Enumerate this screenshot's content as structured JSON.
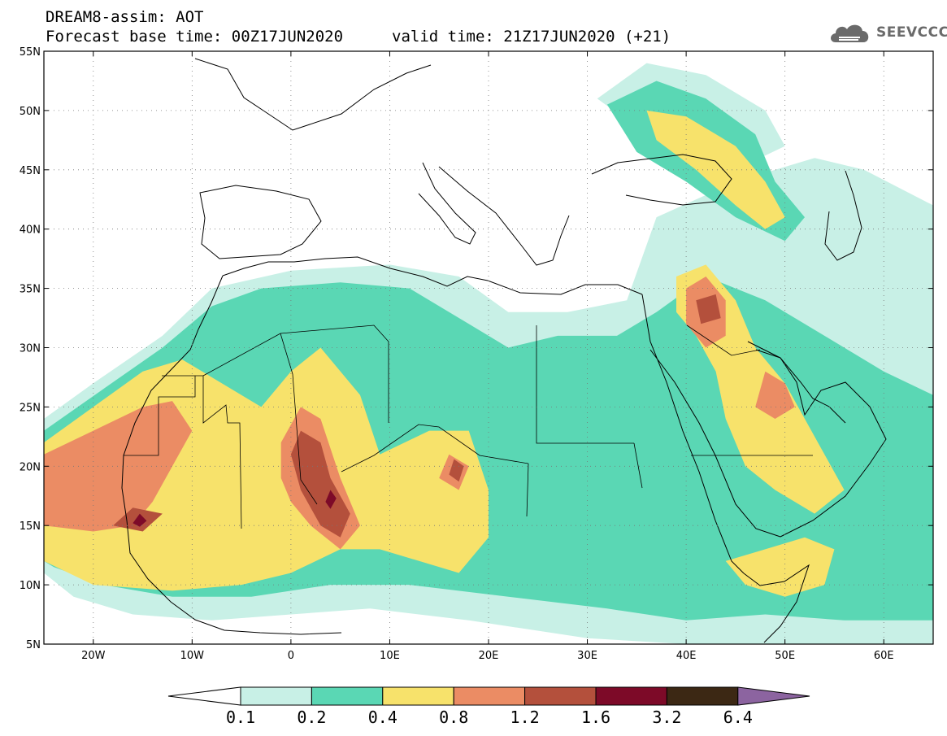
{
  "header": {
    "title_line1": "DREAM8-assim: AOT",
    "title_line2": "Forecast base time: 00Z17JUN2020",
    "valid_time": "valid time: 21Z17JUN2020 (+21)",
    "logo_text": "SEEVCCC"
  },
  "map": {
    "lon_range": [
      -25,
      65
    ],
    "lat_range": [
      5,
      55
    ],
    "lat_ticks": [
      {
        "value": 55,
        "label": "55N"
      },
      {
        "value": 50,
        "label": "50N"
      },
      {
        "value": 45,
        "label": "45N"
      },
      {
        "value": 40,
        "label": "40N"
      },
      {
        "value": 35,
        "label": "35N"
      },
      {
        "value": 30,
        "label": "30N"
      },
      {
        "value": 25,
        "label": "25N"
      },
      {
        "value": 20,
        "label": "20N"
      },
      {
        "value": 15,
        "label": "15N"
      },
      {
        "value": 10,
        "label": "10N"
      },
      {
        "value": 5,
        "label": "5N"
      }
    ],
    "lon_ticks": [
      {
        "value": -20,
        "label": "20W"
      },
      {
        "value": -10,
        "label": "10W"
      },
      {
        "value": 0,
        "label": "0"
      },
      {
        "value": 10,
        "label": "10E"
      },
      {
        "value": 20,
        "label": "20E"
      },
      {
        "value": 30,
        "label": "30E"
      },
      {
        "value": 40,
        "label": "40E"
      },
      {
        "value": 50,
        "label": "50E"
      },
      {
        "value": 60,
        "label": "60E"
      }
    ],
    "gridlines": "dotted",
    "colorbar": {
      "levels": [
        "0.1",
        "0.2",
        "0.4",
        "0.8",
        "1.2",
        "1.6",
        "3.2",
        "6.4"
      ],
      "colors": [
        "#ffffff",
        "#c8f0e6",
        "#5ad7b4",
        "#f7e26b",
        "#eb8c64",
        "#b4503c",
        "#7d0a28",
        "#3c2814",
        "#8c64a0"
      ]
    },
    "dust_regions": [
      {
        "level": 1,
        "points": [
          [
            -25,
            24
          ],
          [
            -20,
            27
          ],
          [
            -13,
            31
          ],
          [
            -8,
            35
          ],
          [
            0,
            36.5
          ],
          [
            10,
            37
          ],
          [
            17,
            36
          ],
          [
            22,
            33
          ],
          [
            28,
            33
          ],
          [
            34,
            34
          ],
          [
            37,
            41
          ],
          [
            45,
            44
          ],
          [
            53,
            46
          ],
          [
            58,
            45
          ],
          [
            65,
            42
          ],
          [
            65,
            5
          ],
          [
            48,
            5
          ],
          [
            40,
            5
          ],
          [
            30,
            5.5
          ],
          [
            18,
            7
          ],
          [
            8,
            8
          ],
          [
            0,
            7.5
          ],
          [
            -8,
            7
          ],
          [
            -16,
            7.5
          ],
          [
            -22,
            9
          ],
          [
            -25,
            11
          ]
        ]
      },
      {
        "level": 1,
        "points": [
          [
            31,
            51
          ],
          [
            36,
            54
          ],
          [
            42,
            53
          ],
          [
            48,
            50
          ],
          [
            50,
            47
          ],
          [
            45,
            45
          ],
          [
            40,
            45.5
          ],
          [
            36,
            48
          ]
        ]
      },
      {
        "level": 2,
        "points": [
          [
            -25,
            23
          ],
          [
            -19,
            26.5
          ],
          [
            -13,
            30
          ],
          [
            -8,
            33.5
          ],
          [
            -3,
            35
          ],
          [
            5,
            35.5
          ],
          [
            12,
            35
          ],
          [
            18,
            32
          ],
          [
            22,
            30
          ],
          [
            27,
            31
          ],
          [
            33,
            31
          ],
          [
            37,
            33
          ],
          [
            42,
            36
          ],
          [
            48,
            34
          ],
          [
            54,
            31
          ],
          [
            60,
            28
          ],
          [
            65,
            26
          ],
          [
            65,
            7
          ],
          [
            56,
            7
          ],
          [
            48,
            7.5
          ],
          [
            40,
            7
          ],
          [
            32,
            8
          ],
          [
            22,
            9
          ],
          [
            12,
            10
          ],
          [
            4,
            10
          ],
          [
            -4,
            9
          ],
          [
            -12,
            9
          ],
          [
            -19,
            10
          ],
          [
            -24,
            11.5
          ],
          [
            -25,
            12
          ]
        ]
      },
      {
        "level": 2,
        "points": [
          [
            32,
            50.5
          ],
          [
            37,
            52.5
          ],
          [
            42,
            51
          ],
          [
            47,
            48
          ],
          [
            49,
            44
          ],
          [
            52,
            41
          ],
          [
            50,
            39
          ],
          [
            45,
            41
          ],
          [
            40,
            44
          ],
          [
            35,
            46.5
          ]
        ]
      },
      {
        "level": 3,
        "points": [
          [
            -25,
            22
          ],
          [
            -20,
            25
          ],
          [
            -15,
            28
          ],
          [
            -11,
            29
          ],
          [
            -7,
            27
          ],
          [
            -3,
            25
          ],
          [
            0,
            28
          ],
          [
            3,
            30
          ],
          [
            7,
            26
          ],
          [
            9,
            21
          ],
          [
            14,
            23
          ],
          [
            18,
            23
          ],
          [
            20,
            18
          ],
          [
            20,
            14
          ],
          [
            17,
            11
          ],
          [
            13,
            12
          ],
          [
            9,
            13
          ],
          [
            5,
            13
          ],
          [
            0,
            11
          ],
          [
            -5,
            10
          ],
          [
            -12,
            9.5
          ],
          [
            -20,
            10
          ],
          [
            -25,
            12
          ]
        ]
      },
      {
        "level": 3,
        "points": [
          [
            39,
            36
          ],
          [
            42,
            37
          ],
          [
            45,
            34
          ],
          [
            47,
            30
          ],
          [
            50,
            27
          ],
          [
            52,
            24
          ],
          [
            54,
            21
          ],
          [
            56,
            18
          ],
          [
            53,
            16
          ],
          [
            49,
            18
          ],
          [
            46,
            20
          ],
          [
            44,
            24
          ],
          [
            43,
            28
          ],
          [
            41,
            31
          ],
          [
            39,
            33
          ]
        ]
      },
      {
        "level": 3,
        "points": [
          [
            36,
            50
          ],
          [
            40,
            49.5
          ],
          [
            45,
            47
          ],
          [
            48,
            44
          ],
          [
            50,
            41
          ],
          [
            48,
            40
          ],
          [
            45,
            42
          ],
          [
            41,
            45
          ],
          [
            37,
            47.5
          ]
        ]
      },
      {
        "level": 3,
        "points": [
          [
            44,
            12
          ],
          [
            48,
            13
          ],
          [
            52,
            14
          ],
          [
            55,
            13
          ],
          [
            54,
            10
          ],
          [
            50,
            9
          ],
          [
            46,
            10
          ]
        ]
      },
      {
        "level": 4,
        "points": [
          [
            -25,
            21
          ],
          [
            -20,
            23
          ],
          [
            -15,
            25
          ],
          [
            -12,
            25.5
          ],
          [
            -10,
            23
          ],
          [
            -12,
            20
          ],
          [
            -14,
            17
          ],
          [
            -16,
            15
          ],
          [
            -20,
            14.5
          ],
          [
            -25,
            15
          ]
        ]
      },
      {
        "level": 4,
        "points": [
          [
            -1,
            22
          ],
          [
            1,
            25
          ],
          [
            3,
            24
          ],
          [
            5,
            19
          ],
          [
            7,
            15
          ],
          [
            5,
            13
          ],
          [
            2,
            15
          ],
          [
            0,
            17
          ],
          [
            -1,
            19
          ]
        ]
      },
      {
        "level": 4,
        "points": [
          [
            40,
            35
          ],
          [
            42,
            36
          ],
          [
            44,
            34
          ],
          [
            44,
            31
          ],
          [
            42,
            30
          ],
          [
            40,
            32
          ]
        ]
      },
      {
        "level": 4,
        "points": [
          [
            15,
            19
          ],
          [
            16,
            21
          ],
          [
            18,
            20
          ],
          [
            17,
            18
          ]
        ]
      },
      {
        "level": 4,
        "points": [
          [
            48,
            28
          ],
          [
            50,
            27
          ],
          [
            51,
            25
          ],
          [
            49,
            24
          ],
          [
            47,
            25
          ]
        ]
      },
      {
        "level": 5,
        "points": [
          [
            0,
            21
          ],
          [
            1,
            23
          ],
          [
            3,
            22
          ],
          [
            4,
            19
          ],
          [
            6,
            16
          ],
          [
            5,
            14
          ],
          [
            3,
            15
          ],
          [
            1,
            18
          ]
        ]
      },
      {
        "level": 5,
        "points": [
          [
            -18,
            15
          ],
          [
            -16,
            16.5
          ],
          [
            -13,
            16
          ],
          [
            -15,
            14.5
          ]
        ]
      },
      {
        "level": 5,
        "points": [
          [
            41,
            34
          ],
          [
            43,
            34.5
          ],
          [
            43.5,
            32.5
          ],
          [
            41.5,
            32
          ]
        ]
      },
      {
        "level": 5,
        "points": [
          [
            16,
            19.3
          ],
          [
            16.5,
            20.6
          ],
          [
            17.5,
            20
          ],
          [
            17,
            18.7
          ]
        ]
      },
      {
        "level": 6,
        "points": [
          [
            3.5,
            17
          ],
          [
            4,
            18
          ],
          [
            4.6,
            17.3
          ],
          [
            4,
            16.4
          ]
        ]
      },
      {
        "level": 6,
        "points": [
          [
            -16,
            15.2
          ],
          [
            -15.3,
            16
          ],
          [
            -14.6,
            15.4
          ],
          [
            -15.3,
            14.9
          ]
        ]
      }
    ]
  }
}
